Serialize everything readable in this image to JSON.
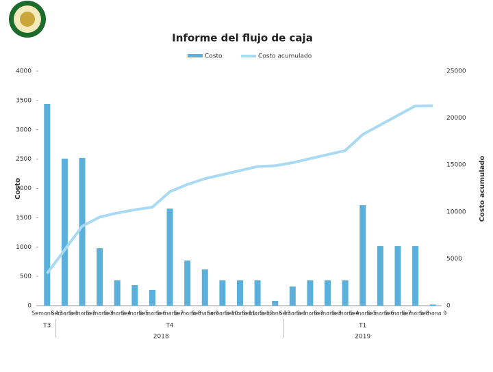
{
  "chart_data": {
    "type": "bar_line",
    "title": "Informe del flujo de caja",
    "y_label": "Costo",
    "y2_label": "Costo acumulado",
    "categories": [
      "Semana 13",
      "Semana 1",
      "Semana 2",
      "Semana 3",
      "Semana 4",
      "Semana 5",
      "Semana 6",
      "Semana 7",
      "Semana 8",
      "Semana 9",
      "Semana 10",
      "Semana 11",
      "Semana 12",
      "Semana 13",
      "Semana 1",
      "Semana 2",
      "Semana 3",
      "Semana 4",
      "Semana 5",
      "Semana 6",
      "Semana 7",
      "Semana 8",
      "Semana 9"
    ],
    "groups": [
      {
        "label": "T3",
        "start": 0,
        "end": 0
      },
      {
        "label": "T4",
        "start": 1,
        "end": 13
      },
      {
        "label": "T1",
        "start": 14,
        "end": 22
      }
    ],
    "years": [
      {
        "label": "2018",
        "start": 0,
        "end": 13
      },
      {
        "label": "2019",
        "start": 14,
        "end": 22
      }
    ],
    "series": [
      {
        "name": "Costo",
        "color": "#5ab0da",
        "values": [
          3440,
          2507,
          2519,
          980,
          431,
          350,
          268,
          1656,
          770,
          618,
          431,
          431,
          431,
          82,
          327,
          431,
          431,
          431,
          1714,
          1015,
          1015,
          1015,
          20
        ]
      },
      {
        "name": "Costo acumulado",
        "color": "#a9daf2",
        "axis": "y2",
        "values": [
          3440,
          5947,
          8466,
          9446,
          9877,
          10227,
          10495,
          12151,
          12921,
          13539,
          13970,
          14401,
          14832,
          14914,
          15241,
          15672,
          16103,
          16534,
          18248,
          19263,
          20278,
          21293,
          21313
        ]
      }
    ],
    "ylim": [
      0,
      4000
    ],
    "yticks": [
      0,
      500,
      1000,
      1500,
      2000,
      2500,
      3000,
      3500,
      4000
    ],
    "y2lim": [
      0,
      25000
    ],
    "y2ticks": [
      0,
      5000,
      10000,
      15000,
      20000,
      25000
    ]
  }
}
